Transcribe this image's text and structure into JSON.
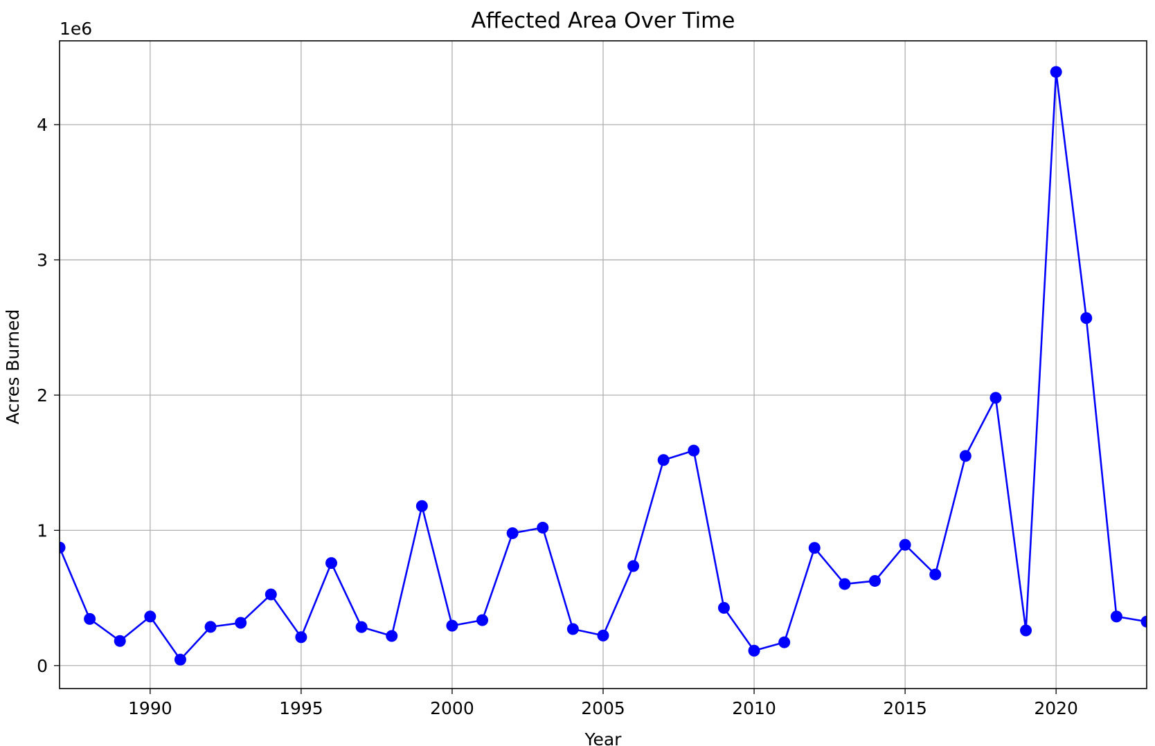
{
  "chart_data": {
    "type": "line",
    "title": "Affected Area Over Time",
    "xlabel": "Year",
    "ylabel": "Acres Burned",
    "y_offset_label": "1e6",
    "xlim": [
      1987,
      2023
    ],
    "ylim": [
      -170000,
      4620000
    ],
    "x_ticks": [
      1990,
      1995,
      2000,
      2005,
      2010,
      2015,
      2020
    ],
    "y_ticks": [
      0,
      1000000,
      2000000,
      3000000,
      4000000
    ],
    "y_tick_labels": [
      "0",
      "1",
      "2",
      "3",
      "4"
    ],
    "grid": true,
    "series_color": "#0000ff",
    "marker": "circle",
    "series": [
      {
        "x": [
          1987,
          1988,
          1989,
          1990,
          1991,
          1992,
          1993,
          1994,
          1995,
          1996,
          1997,
          1998,
          1999,
          2000,
          2001,
          2002,
          2003,
          2004,
          2005,
          2006,
          2007,
          2008,
          2009,
          2010,
          2011,
          2012,
          2013,
          2014,
          2015,
          2016,
          2017,
          2018,
          2019,
          2020,
          2021,
          2022,
          2023
        ],
        "y": [
          873000,
          345000,
          182000,
          363000,
          44000,
          286000,
          316000,
          526000,
          210000,
          758000,
          285000,
          219000,
          1180000,
          295000,
          336000,
          979000,
          1020000,
          270000,
          222000,
          736000,
          1520000,
          1590000,
          427000,
          110000,
          172000,
          870000,
          603000,
          626000,
          893000,
          674000,
          1550000,
          1980000,
          260000,
          4390000,
          2570000,
          363000,
          325000
        ]
      }
    ]
  }
}
